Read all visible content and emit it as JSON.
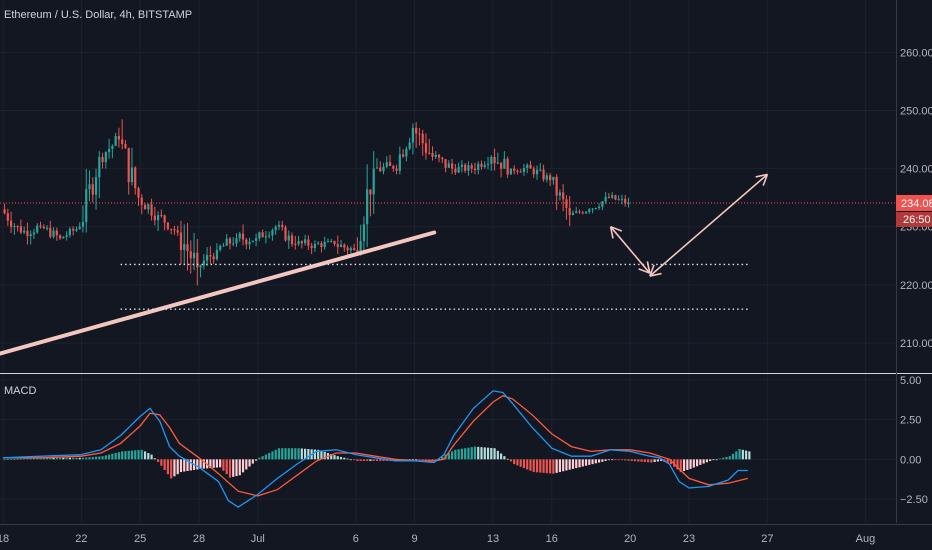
{
  "header": {
    "symbol_title": "Ethereum / U.S. Dollar, 4h, BITSTAMP"
  },
  "macd_panel": {
    "title": "MACD"
  },
  "colors": {
    "background": "#131722",
    "grid": "#1e222d",
    "up": "#26a69a",
    "down": "#ef5350",
    "macd_line": "#2196f3",
    "signal_line": "#ff5a3c",
    "hist_up_strong": "#26a69a",
    "hist_up_weak": "#b2dfdb",
    "hist_down_strong": "#ef5350",
    "hist_down_weak": "#ffcdd2",
    "annotation": "#f4c6c0",
    "price_line": "#ef5350"
  },
  "chart_data": [
    {
      "type": "candlestick",
      "title": "Ethereum / U.S. Dollar, 4h, BITSTAMP",
      "x_axis": {
        "type": "date",
        "tick_labels": [
          "18",
          "22",
          "25",
          "28",
          "Jul",
          "6",
          "9",
          "13",
          "16",
          "20",
          "23",
          "27",
          "Aug"
        ]
      },
      "y_axis": {
        "position": "right",
        "ticks": [
          210,
          220,
          230,
          240,
          250,
          260
        ],
        "tick_labels": [
          "210.00",
          "220.00",
          "230.00",
          "240.00",
          "250.00",
          "260.00"
        ],
        "range": [
          205,
          269
        ]
      },
      "current_price": {
        "value": 234.08,
        "label": "234.08",
        "countdown": "26:50"
      },
      "candles_daily_approx": [
        {
          "day": "Jun 18",
          "open": 233,
          "high": 235,
          "low": 228,
          "close": 229
        },
        {
          "day": "Jun 19",
          "open": 229,
          "high": 232,
          "low": 226,
          "close": 230
        },
        {
          "day": "Jun 20",
          "open": 230,
          "high": 232,
          "low": 227,
          "close": 228
        },
        {
          "day": "Jun 21",
          "open": 228,
          "high": 231,
          "low": 227,
          "close": 230
        },
        {
          "day": "Jun 22",
          "open": 230,
          "high": 244,
          "low": 229,
          "close": 242
        },
        {
          "day": "Jun 23",
          "open": 242,
          "high": 248,
          "low": 240,
          "close": 245
        },
        {
          "day": "Jun 24",
          "open": 245,
          "high": 249,
          "low": 233,
          "close": 235
        },
        {
          "day": "Jun 25",
          "open": 235,
          "high": 237,
          "low": 229,
          "close": 232
        },
        {
          "day": "Jun 26",
          "open": 232,
          "high": 233,
          "low": 227,
          "close": 229
        },
        {
          "day": "Jun 27",
          "open": 229,
          "high": 231,
          "low": 216,
          "close": 223
        },
        {
          "day": "Jun 28",
          "open": 223,
          "high": 228,
          "low": 221,
          "close": 226
        },
        {
          "day": "Jun 29",
          "open": 226,
          "high": 230,
          "low": 224,
          "close": 228
        },
        {
          "day": "Jun 30",
          "open": 228,
          "high": 232,
          "low": 225,
          "close": 228
        },
        {
          "day": "Jul 1",
          "open": 228,
          "high": 232,
          "low": 227,
          "close": 230
        },
        {
          "day": "Jul 2",
          "open": 230,
          "high": 231,
          "low": 225,
          "close": 227
        },
        {
          "day": "Jul 3",
          "open": 227,
          "high": 230,
          "low": 225,
          "close": 227
        },
        {
          "day": "Jul 4",
          "open": 227,
          "high": 229,
          "low": 225,
          "close": 227
        },
        {
          "day": "Jul 5",
          "open": 227,
          "high": 229,
          "low": 223,
          "close": 226
        },
        {
          "day": "Jul 6",
          "open": 226,
          "high": 243,
          "low": 225,
          "close": 240
        },
        {
          "day": "Jul 7",
          "open": 240,
          "high": 244,
          "low": 237,
          "close": 240
        },
        {
          "day": "Jul 8",
          "open": 240,
          "high": 249,
          "low": 239,
          "close": 247
        },
        {
          "day": "Jul 9",
          "open": 247,
          "high": 248,
          "low": 237,
          "close": 242
        },
        {
          "day": "Jul 10",
          "open": 242,
          "high": 243,
          "low": 236,
          "close": 240
        },
        {
          "day": "Jul 11",
          "open": 240,
          "high": 242,
          "low": 238,
          "close": 240
        },
        {
          "day": "Jul 12",
          "open": 240,
          "high": 244,
          "low": 239,
          "close": 242
        },
        {
          "day": "Jul 13",
          "open": 242,
          "high": 246,
          "low": 238,
          "close": 240
        },
        {
          "day": "Jul 14",
          "open": 240,
          "high": 242,
          "low": 238,
          "close": 240
        },
        {
          "day": "Jul 15",
          "open": 240,
          "high": 242,
          "low": 237,
          "close": 238
        },
        {
          "day": "Jul 16",
          "open": 238,
          "high": 239,
          "low": 229,
          "close": 232
        },
        {
          "day": "Jul 17",
          "open": 232,
          "high": 234,
          "low": 231,
          "close": 233
        },
        {
          "day": "Jul 18",
          "open": 233,
          "high": 236,
          "low": 232,
          "close": 235
        },
        {
          "day": "Jul 19",
          "open": 235,
          "high": 237,
          "low": 233,
          "close": 234.08
        }
      ],
      "annotations": [
        {
          "type": "trendline",
          "from": {
            "date": "Jun 15",
            "value": 205.5
          },
          "to": {
            "date": "Jul 10",
            "value": 229
          }
        },
        {
          "type": "horizontal-dotted",
          "value": 223.5,
          "from_date": "Jun 24",
          "to_date": "Jul 26"
        },
        {
          "type": "horizontal-dotted",
          "value": 215.8,
          "from_date": "Jun 24",
          "to_date": "Jul 26"
        },
        {
          "type": "arrow",
          "from": {
            "date": "Jul 19",
            "value": 230
          },
          "to": {
            "date": "Jul 21",
            "value": 222
          }
        },
        {
          "type": "arrow",
          "from": {
            "date": "Jul 21",
            "value": 221.5
          },
          "to": {
            "date": "Jul 27",
            "value": 239
          }
        }
      ]
    },
    {
      "type": "macd",
      "title": "MACD",
      "y_axis": {
        "position": "right",
        "ticks": [
          -2.5,
          0,
          2.5,
          5
        ],
        "tick_labels": [
          "−2.50",
          "0.00",
          "2.50",
          "5.00"
        ],
        "range": [
          -4,
          5.3
        ]
      },
      "series": [
        {
          "key": "macd",
          "points": [
            [
              0,
              0.1
            ],
            [
              2,
              0.2
            ],
            [
              4,
              0.3
            ],
            [
              5,
              0.6
            ],
            [
              6,
              1.5
            ],
            [
              7,
              2.7
            ],
            [
              7.5,
              3.2
            ],
            [
              8,
              2.4
            ],
            [
              8.5,
              0.8
            ],
            [
              9,
              0.2
            ],
            [
              10,
              -0.5
            ],
            [
              11,
              -1.4
            ],
            [
              11.5,
              -2.6
            ],
            [
              12,
              -3.0
            ],
            [
              13,
              -2.2
            ],
            [
              14,
              -1.2
            ],
            [
              15,
              -0.3
            ],
            [
              16,
              0.5
            ],
            [
              17,
              0.6
            ],
            [
              18,
              0.3
            ],
            [
              19,
              0.1
            ],
            [
              20,
              -0.1
            ],
            [
              21,
              -0.1
            ],
            [
              22,
              -0.2
            ],
            [
              22.5,
              0.3
            ],
            [
              23,
              1.5
            ],
            [
              24,
              3.2
            ],
            [
              25,
              4.3
            ],
            [
              25.5,
              4.2
            ],
            [
              26,
              3.5
            ],
            [
              27,
              2.0
            ],
            [
              28,
              0.7
            ],
            [
              29,
              0.2
            ],
            [
              30,
              0.2
            ],
            [
              31,
              0.6
            ],
            [
              32,
              0.5
            ],
            [
              33,
              0.2
            ],
            [
              33.5,
              0.1
            ],
            [
              34,
              -0.3
            ],
            [
              34.5,
              -1.4
            ],
            [
              35,
              -1.8
            ],
            [
              36,
              -1.7
            ],
            [
              37,
              -1.3
            ],
            [
              37.5,
              -0.7
            ],
            [
              38,
              -0.7
            ]
          ]
        },
        {
          "key": "signal",
          "points": [
            [
              0,
              0.1
            ],
            [
              2,
              0.1
            ],
            [
              4,
              0.2
            ],
            [
              5,
              0.4
            ],
            [
              6,
              1.0
            ],
            [
              7,
              2.1
            ],
            [
              7.5,
              2.9
            ],
            [
              8,
              2.8
            ],
            [
              8.5,
              2.0
            ],
            [
              9,
              1.0
            ],
            [
              10,
              0.1
            ],
            [
              11,
              -0.9
            ],
            [
              12,
              -2.0
            ],
            [
              13,
              -2.3
            ],
            [
              14,
              -1.9
            ],
            [
              15,
              -1.0
            ],
            [
              16,
              -0.1
            ],
            [
              17,
              0.4
            ],
            [
              18,
              0.4
            ],
            [
              19,
              0.2
            ],
            [
              20,
              0.0
            ],
            [
              21,
              -0.1
            ],
            [
              22,
              -0.1
            ],
            [
              22.5,
              0.0
            ],
            [
              23,
              0.9
            ],
            [
              24,
              2.4
            ],
            [
              25,
              3.6
            ],
            [
              25.5,
              4.0
            ],
            [
              26,
              3.8
            ],
            [
              27,
              2.8
            ],
            [
              28,
              1.6
            ],
            [
              29,
              0.8
            ],
            [
              30,
              0.5
            ],
            [
              31,
              0.6
            ],
            [
              32,
              0.6
            ],
            [
              33,
              0.4
            ],
            [
              34,
              0.0
            ],
            [
              34.5,
              -0.6
            ],
            [
              35,
              -1.2
            ],
            [
              36,
              -1.6
            ],
            [
              37,
              -1.5
            ],
            [
              38,
              -1.2
            ]
          ]
        }
      ]
    }
  ]
}
